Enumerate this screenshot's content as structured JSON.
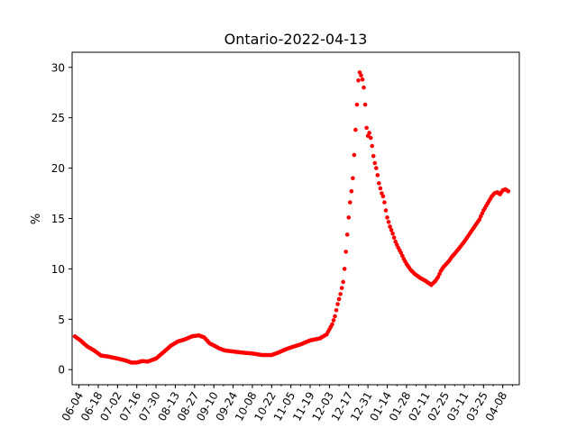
{
  "chart_data": {
    "type": "scatter",
    "title": "Ontario-2022-04-13",
    "xlabel": "",
    "ylabel": "%",
    "x_start": "2021-05-30",
    "x_end": "2022-04-20",
    "ylim": [
      -1.5,
      31.5
    ],
    "yticks": [
      0,
      5,
      10,
      15,
      20,
      25,
      30
    ],
    "xtick_labels": [
      "06-04",
      "06-18",
      "07-02",
      "07-16",
      "07-30",
      "08-13",
      "08-27",
      "09-10",
      "09-24",
      "10-08",
      "10-22",
      "11-05",
      "11-19",
      "12-03",
      "12-17",
      "12-31",
      "01-14",
      "01-28",
      "02-11",
      "02-25",
      "03-11",
      "03-25",
      "04-08"
    ],
    "xtick_dates": [
      "2021-06-04",
      "2021-06-18",
      "2021-07-02",
      "2021-07-16",
      "2021-07-30",
      "2021-08-13",
      "2021-08-27",
      "2021-09-10",
      "2021-09-24",
      "2021-10-08",
      "2021-10-22",
      "2021-11-05",
      "2021-11-19",
      "2021-12-03",
      "2021-12-17",
      "2021-12-31",
      "2022-01-14",
      "2022-01-28",
      "2022-02-11",
      "2022-02-25",
      "2022-03-11",
      "2022-03-25",
      "2022-04-08"
    ],
    "grid": false,
    "marker_color": "#ff0000",
    "series": [
      {
        "x": [
          "2021-06-01",
          "2021-06-05",
          "2021-06-10",
          "2021-06-15",
          "2021-06-20",
          "2021-06-25",
          "2021-07-02",
          "2021-07-08",
          "2021-07-12",
          "2021-07-16",
          "2021-07-20",
          "2021-07-24",
          "2021-07-30",
          "2021-08-05",
          "2021-08-10",
          "2021-08-15",
          "2021-08-20",
          "2021-08-25",
          "2021-08-30",
          "2021-09-03",
          "2021-09-07",
          "2021-09-10",
          "2021-09-14",
          "2021-09-18",
          "2021-09-24",
          "2021-09-30",
          "2021-10-08",
          "2021-10-15",
          "2021-10-22",
          "2021-10-27",
          "2021-11-01",
          "2021-11-05",
          "2021-11-12",
          "2021-11-19",
          "2021-11-26",
          "2021-12-01",
          "2021-12-05",
          "2021-12-07",
          "2021-12-09",
          "2021-12-11",
          "2021-12-13",
          "2021-12-14",
          "2021-12-15",
          "2021-12-16",
          "2021-12-17",
          "2021-12-18",
          "2021-12-19",
          "2021-12-20",
          "2021-12-21",
          "2021-12-22",
          "2021-12-23",
          "2021-12-24",
          "2021-12-25",
          "2021-12-26",
          "2021-12-27",
          "2021-12-28",
          "2021-12-29",
          "2021-12-30",
          "2021-12-31",
          "2022-01-01",
          "2022-01-02",
          "2022-01-03",
          "2022-01-04",
          "2022-01-05",
          "2022-01-06",
          "2022-01-07",
          "2022-01-08",
          "2022-01-09",
          "2022-01-10",
          "2022-01-11",
          "2022-01-12",
          "2022-01-13",
          "2022-01-14",
          "2022-01-16",
          "2022-01-18",
          "2022-01-20",
          "2022-01-22",
          "2022-01-24",
          "2022-01-26",
          "2022-01-28",
          "2022-01-31",
          "2022-02-03",
          "2022-02-07",
          "2022-02-11",
          "2022-02-15",
          "2022-02-18",
          "2022-02-20",
          "2022-02-22",
          "2022-02-24",
          "2022-02-26",
          "2022-02-28",
          "2022-03-02",
          "2022-03-04",
          "2022-03-07",
          "2022-03-11",
          "2022-03-14",
          "2022-03-18",
          "2022-03-22",
          "2022-03-25",
          "2022-03-28",
          "2022-03-31",
          "2022-04-02",
          "2022-04-04",
          "2022-04-06",
          "2022-04-08",
          "2022-04-10",
          "2022-04-12"
        ],
        "y": [
          3.3,
          2.9,
          2.3,
          1.9,
          1.4,
          1.3,
          1.1,
          0.9,
          0.7,
          0.7,
          0.85,
          0.8,
          1.1,
          1.8,
          2.4,
          2.8,
          3.0,
          3.3,
          3.4,
          3.2,
          2.6,
          2.4,
          2.1,
          1.9,
          1.8,
          1.7,
          1.6,
          1.45,
          1.45,
          1.7,
          2.0,
          2.2,
          2.5,
          2.9,
          3.1,
          3.5,
          4.5,
          5.3,
          6.5,
          7.5,
          8.7,
          10.0,
          11.7,
          13.4,
          15.1,
          16.6,
          17.7,
          19.0,
          21.3,
          23.8,
          26.3,
          28.7,
          29.5,
          29.2,
          28.8,
          28.0,
          26.3,
          24.0,
          23.2,
          23.5,
          23.0,
          22.2,
          21.2,
          20.5,
          20.0,
          19.3,
          18.5,
          18.0,
          17.5,
          17.2,
          16.6,
          15.8,
          15.1,
          14.2,
          13.5,
          12.7,
          12.1,
          11.6,
          11.0,
          10.5,
          9.9,
          9.5,
          9.1,
          8.8,
          8.4,
          8.8,
          9.2,
          9.8,
          10.2,
          10.5,
          10.8,
          11.2,
          11.5,
          12.0,
          12.7,
          13.3,
          14.1,
          14.9,
          15.8,
          16.5,
          17.2,
          17.5,
          17.6,
          17.4,
          17.8,
          17.9,
          17.7
        ]
      }
    ]
  }
}
